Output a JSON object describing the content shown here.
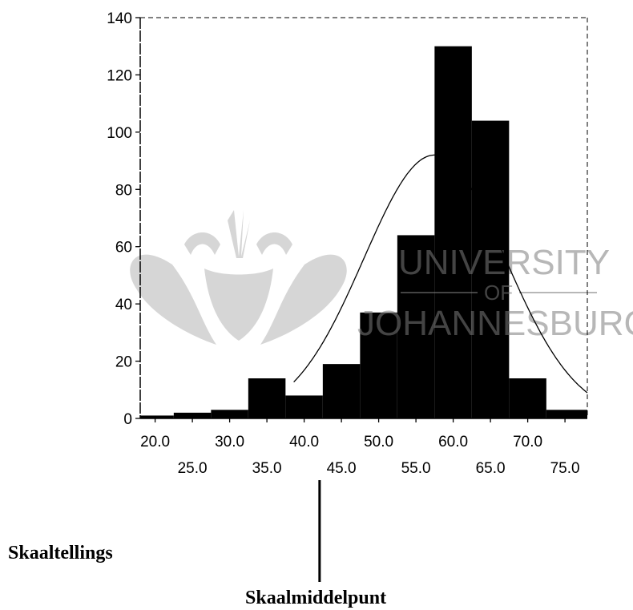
{
  "chart_data": {
    "type": "bar",
    "title": "",
    "xlabel": "",
    "ylabel": "",
    "xlim": [
      18.0,
      78.0
    ],
    "ylim": [
      0,
      140
    ],
    "bin_width": 5,
    "bins": [
      {
        "start": 18.0,
        "end": 22.5,
        "count": 1
      },
      {
        "start": 22.5,
        "end": 27.5,
        "count": 2
      },
      {
        "start": 27.5,
        "end": 32.5,
        "count": 3
      },
      {
        "start": 32.5,
        "end": 37.5,
        "count": 14
      },
      {
        "start": 37.5,
        "end": 42.5,
        "count": 8
      },
      {
        "start": 42.5,
        "end": 47.5,
        "count": 19
      },
      {
        "start": 47.5,
        "end": 52.5,
        "count": 37
      },
      {
        "start": 52.5,
        "end": 57.5,
        "count": 64
      },
      {
        "start": 57.5,
        "end": 62.5,
        "count": 130
      },
      {
        "start": 62.5,
        "end": 67.5,
        "count": 104
      },
      {
        "start": 67.5,
        "end": 72.5,
        "count": 14
      },
      {
        "start": 72.5,
        "end": 78.0,
        "count": 3
      }
    ],
    "yticks": [
      0,
      20,
      40,
      60,
      80,
      100,
      120,
      140
    ],
    "xticks_upper": [
      "20.0",
      "30.0",
      "40.0",
      "50.0",
      "60.0",
      "70.0"
    ],
    "xticks_lower": [
      "25.0",
      "35.0",
      "45.0",
      "55.0",
      "65.0",
      "75.0"
    ],
    "normal_curve": {
      "mean": 57.5,
      "sd": 9.5,
      "peak": 92
    },
    "marker_value": 42.5,
    "grid": false,
    "bar_color": "#000000",
    "curve_color": "#000000"
  },
  "annotations": {
    "left_caption": "Skaaltellings",
    "bottom_caption": "Skaalmiddelpunt"
  },
  "watermark": {
    "line1": "UNIVERSITY",
    "line2": "OF",
    "line3": "JOHANNESBURG",
    "color": "#8a8a8a"
  }
}
